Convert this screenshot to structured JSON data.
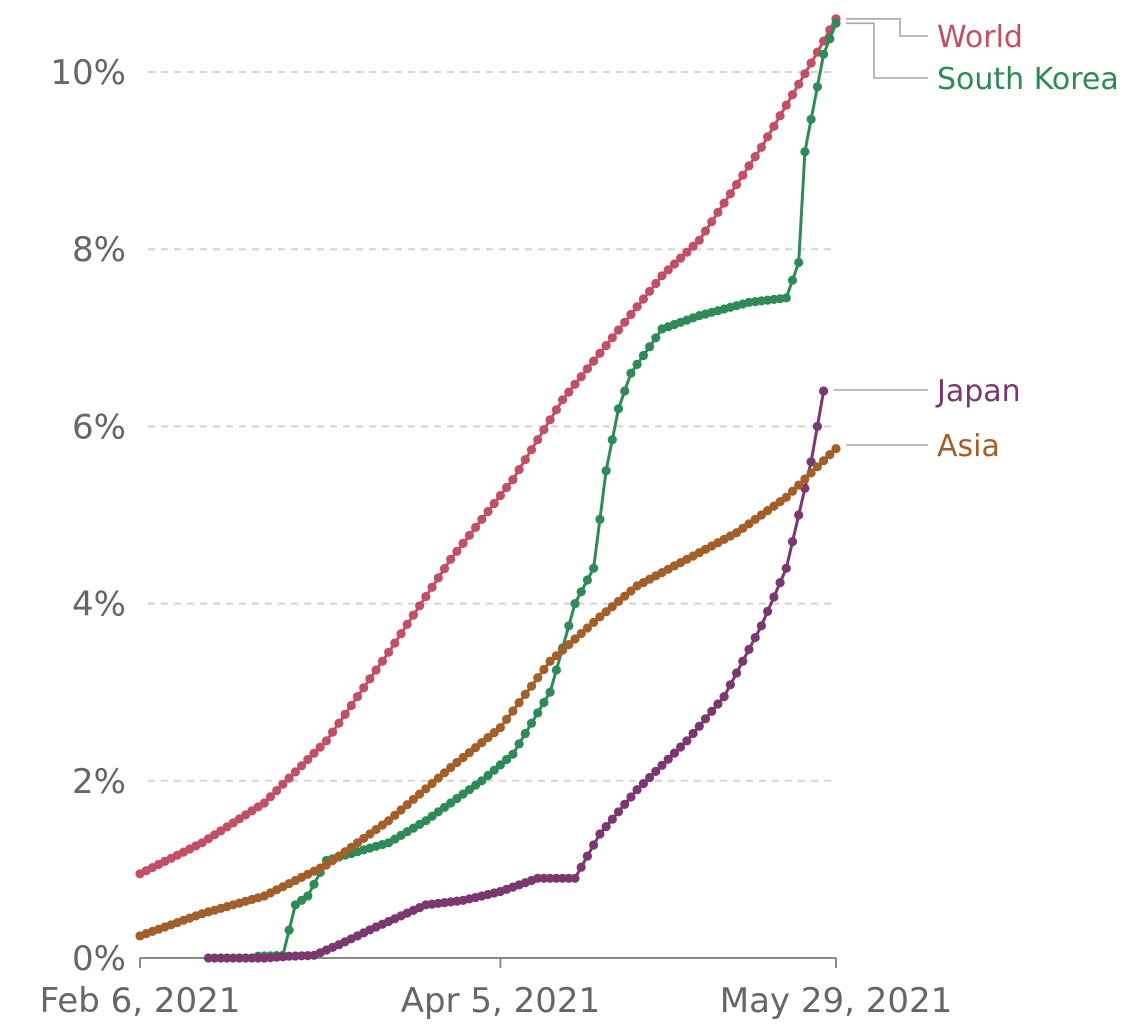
{
  "chart_data": {
    "type": "line",
    "title": "",
    "xlabel": "",
    "ylabel": "",
    "x_ticks": [
      "Feb 6, 2021",
      "Apr 5, 2021",
      "May 29, 2021"
    ],
    "x_tick_days": [
      0,
      58,
      112
    ],
    "x_range_days": [
      0,
      112
    ],
    "y_ticks": [
      "0%",
      "2%",
      "4%",
      "6%",
      "8%",
      "10%"
    ],
    "y_tick_values": [
      0,
      2,
      4,
      6,
      8,
      10
    ],
    "ylim": [
      0,
      10.6
    ],
    "grid": true,
    "unit": "%",
    "series": [
      {
        "name": "World",
        "color": "#c15065",
        "label_color": "#c15065",
        "points": [
          [
            0,
            0.95
          ],
          [
            10,
            1.3
          ],
          [
            20,
            1.75
          ],
          [
            30,
            2.45
          ],
          [
            40,
            3.45
          ],
          [
            50,
            4.5
          ],
          [
            60,
            5.4
          ],
          [
            68,
            6.3
          ],
          [
            76,
            7.0
          ],
          [
            84,
            7.7
          ],
          [
            90,
            8.1
          ],
          [
            100,
            9.15
          ],
          [
            108,
            10.1
          ],
          [
            112,
            10.6
          ]
        ]
      },
      {
        "name": "South Korea",
        "color": "#2e8b57",
        "label_color": "#2e8b57",
        "points": [
          [
            19,
            0.02
          ],
          [
            23,
            0.03
          ],
          [
            25,
            0.6
          ],
          [
            27,
            0.7
          ],
          [
            30,
            1.1
          ],
          [
            35,
            1.2
          ],
          [
            40,
            1.3
          ],
          [
            46,
            1.55
          ],
          [
            55,
            2.0
          ],
          [
            60,
            2.3
          ],
          [
            66,
            3.0
          ],
          [
            70,
            4.0
          ],
          [
            73,
            4.4
          ],
          [
            75,
            5.5
          ],
          [
            77,
            6.2
          ],
          [
            79,
            6.6
          ],
          [
            84,
            7.1
          ],
          [
            90,
            7.25
          ],
          [
            98,
            7.4
          ],
          [
            104,
            7.45
          ],
          [
            106,
            7.85
          ],
          [
            107,
            9.1
          ],
          [
            110,
            10.2
          ],
          [
            112,
            10.55
          ]
        ]
      },
      {
        "name": "Japan",
        "color": "#7a3770",
        "label_color": "#7a3770",
        "points": [
          [
            11,
            0.0
          ],
          [
            20,
            0.0
          ],
          [
            24,
            0.02
          ],
          [
            28,
            0.03
          ],
          [
            32,
            0.15
          ],
          [
            38,
            0.35
          ],
          [
            46,
            0.6
          ],
          [
            52,
            0.65
          ],
          [
            58,
            0.75
          ],
          [
            64,
            0.9
          ],
          [
            70,
            0.9
          ],
          [
            74,
            1.4
          ],
          [
            80,
            1.9
          ],
          [
            88,
            2.45
          ],
          [
            94,
            2.95
          ],
          [
            100,
            3.75
          ],
          [
            104,
            4.4
          ],
          [
            106,
            5.0
          ],
          [
            108,
            5.6
          ],
          [
            109,
            6.0
          ],
          [
            110,
            6.4
          ]
        ]
      },
      {
        "name": "Asia",
        "color": "#a25f2a",
        "label_color": "#a25f2a",
        "points": [
          [
            0,
            0.25
          ],
          [
            10,
            0.5
          ],
          [
            20,
            0.7
          ],
          [
            30,
            1.05
          ],
          [
            40,
            1.55
          ],
          [
            50,
            2.15
          ],
          [
            58,
            2.6
          ],
          [
            66,
            3.35
          ],
          [
            74,
            3.85
          ],
          [
            80,
            4.2
          ],
          [
            88,
            4.5
          ],
          [
            96,
            4.8
          ],
          [
            104,
            5.2
          ],
          [
            112,
            5.75
          ]
        ]
      }
    ]
  }
}
